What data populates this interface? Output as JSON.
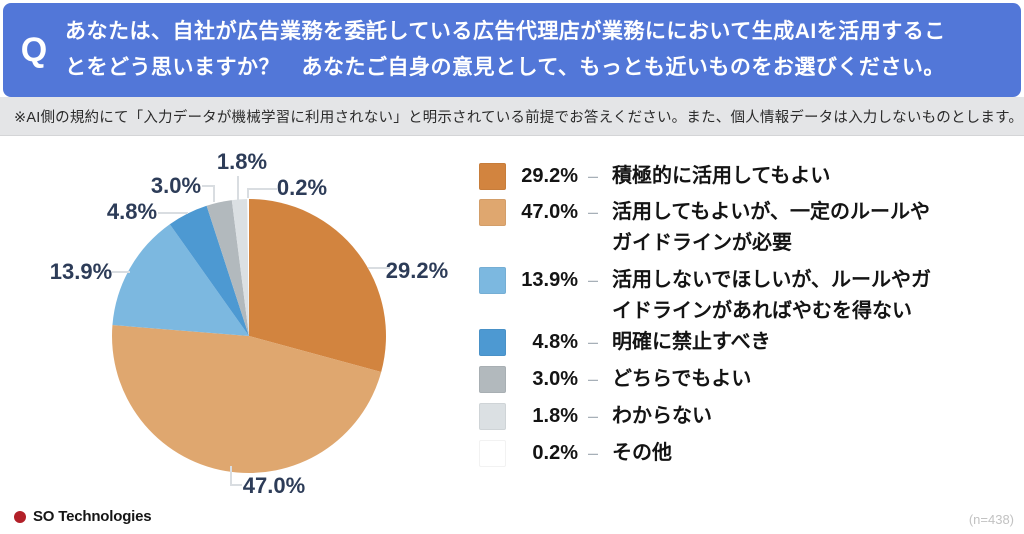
{
  "header": {
    "q_badge": "Q",
    "question": "あなたは、自社が広告業務を委託している広告代理店が業務ににおいて生成AIを活用するこ\nとをどう思いますか？　あなたご自身の意見として、もっとも近いものをお選びください。"
  },
  "note": "※AI側の規約にて「入力データが機械学習に利用されない」と明示されている前提でお答えください。また、個人情報データは入力しないものとします。",
  "chart_data": {
    "type": "pie",
    "unit": "%",
    "start_angle_deg": 0,
    "direction": "clockwise",
    "slices": [
      {
        "label": "積極的に活用してもよい",
        "value": 29.2,
        "pct_label": "29.2%",
        "color": "#d2843f"
      },
      {
        "label": "活用してもよいが、一定のルールや\nガイドラインが必要",
        "value": 47.0,
        "pct_label": "47.0%",
        "color": "#dfa76f"
      },
      {
        "label": "活用しないでほしいが、ルールやガ\nイドラインがあればやむを得ない",
        "value": 13.9,
        "pct_label": "13.9%",
        "color": "#7cb8e0"
      },
      {
        "label": "明確に禁止すべき",
        "value": 4.8,
        "pct_label": "4.8%",
        "color": "#4d99d2"
      },
      {
        "label": "どちらでもよい",
        "value": 3.0,
        "pct_label": "3.0%",
        "color": "#b2b9bd"
      },
      {
        "label": "わからない",
        "value": 1.8,
        "pct_label": "1.8%",
        "color": "#dbe0e3"
      },
      {
        "label": "その他",
        "value": 0.2,
        "pct_label": "0.2%",
        "color": "#ffffff"
      }
    ],
    "legend_position": "right",
    "sample_size": "(n=438)"
  },
  "legend": {
    "separator": "–"
  },
  "footer": {
    "brand": "SO Technologies",
    "sample_size": "(n=438)"
  },
  "colors": {
    "header_bg": "#5277d8",
    "note_bg": "#e4e5e7",
    "pie_label_text": "#2d3c58",
    "leader_line": "#d9dde1",
    "brand_dot": "#b22028"
  }
}
